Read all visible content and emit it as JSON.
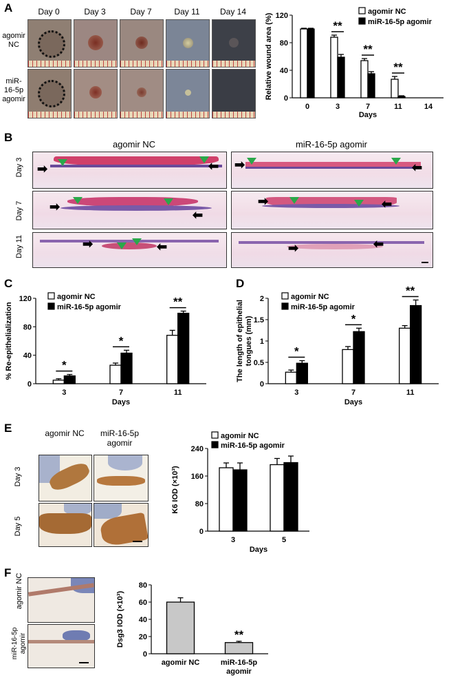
{
  "panel_labels": {
    "a": "A",
    "b": "B",
    "c": "C",
    "d": "D",
    "e": "E",
    "f": "F"
  },
  "panel_a": {
    "day_headers": [
      "Day 0",
      "Day 3",
      "Day 7",
      "Day 11",
      "Day 14"
    ],
    "row_labels": [
      "agomir NC",
      "miR-16-5p agomir"
    ]
  },
  "panel_b": {
    "col_headers": [
      "agomir NC",
      "miR-16-5p agomir"
    ],
    "row_labels": [
      "Day 3",
      "Day 7",
      "Day 11"
    ]
  },
  "panel_e": {
    "col_headers": [
      "agomir NC",
      "miR-16-5p agomir"
    ],
    "row_labels": [
      "Day 3",
      "Day 5"
    ]
  },
  "panel_f": {
    "row_labels": [
      "agomir NC",
      "miR-16-5p agomir"
    ]
  },
  "chart_data": [
    {
      "id": "A",
      "type": "bar",
      "categories": [
        "0",
        "3",
        "7",
        "11",
        "14"
      ],
      "series": [
        {
          "name": "agomir NC",
          "values": [
            100,
            88,
            54,
            27,
            0
          ],
          "errors": [
            1,
            3,
            3,
            4,
            0
          ]
        },
        {
          "name": "miR-16-5p agomir",
          "values": [
            100,
            59,
            35,
            2,
            0
          ],
          "errors": [
            1,
            4,
            3,
            1,
            0
          ]
        }
      ],
      "xlabel": "Days",
      "ylabel": "Relative wound area (%)",
      "ylim": [
        0,
        120
      ],
      "yticks": [
        0,
        40,
        80,
        120
      ],
      "annotations": [
        "",
        "**",
        "**",
        "**",
        ""
      ]
    },
    {
      "id": "C",
      "type": "bar",
      "categories": [
        "3",
        "7",
        "11"
      ],
      "series": [
        {
          "name": "agomir NC",
          "values": [
            5,
            26,
            68
          ],
          "errors": [
            2,
            3,
            7
          ]
        },
        {
          "name": "miR-16-5p agomir",
          "values": [
            11,
            43,
            99
          ],
          "errors": [
            2,
            4,
            3
          ]
        }
      ],
      "xlabel": "Days",
      "ylabel": "% Re-epithelialization",
      "ylim": [
        0,
        120
      ],
      "yticks": [
        0,
        40,
        80,
        120
      ],
      "annotations": [
        "*",
        "*",
        "**"
      ]
    },
    {
      "id": "D",
      "type": "bar",
      "categories": [
        "3",
        "7",
        "11"
      ],
      "series": [
        {
          "name": "agomir NC",
          "values": [
            0.27,
            0.8,
            1.3
          ],
          "errors": [
            0.05,
            0.07,
            0.06
          ]
        },
        {
          "name": "miR-16-5p agomir",
          "values": [
            0.48,
            1.22,
            1.83
          ],
          "errors": [
            0.06,
            0.08,
            0.13
          ]
        }
      ],
      "xlabel": "Days",
      "ylabel": "The length of epithelial tongues (mm)",
      "ylim": [
        0,
        2
      ],
      "yticks": [
        0,
        0.5,
        1,
        1.5,
        2
      ],
      "annotations": [
        "*",
        "*",
        "**"
      ]
    },
    {
      "id": "E",
      "type": "bar",
      "categories": [
        "3",
        "5"
      ],
      "series": [
        {
          "name": "agomir NC",
          "values": [
            184,
            193
          ],
          "errors": [
            14,
            18
          ]
        },
        {
          "name": "miR-16-5p agomir",
          "values": [
            178,
            199
          ],
          "errors": [
            20,
            19
          ]
        }
      ],
      "xlabel": "Days",
      "ylabel": "K6 IOD (×10³)",
      "ylim": [
        0,
        240
      ],
      "yticks": [
        0,
        80,
        160,
        240
      ],
      "annotations": [
        "",
        ""
      ]
    },
    {
      "id": "F",
      "type": "bar",
      "categories": [
        "agomir NC",
        "miR-16-5p agomir"
      ],
      "series": [
        {
          "name": "Dsg3",
          "values": [
            60,
            13
          ],
          "errors": [
            5,
            1.5
          ]
        }
      ],
      "xlabel": "",
      "ylabel": "Dsg3 IOD (×10³)",
      "ylim": [
        0,
        80
      ],
      "yticks": [
        0,
        20,
        40,
        60,
        80
      ],
      "annotations": [
        "",
        "**"
      ]
    }
  ]
}
